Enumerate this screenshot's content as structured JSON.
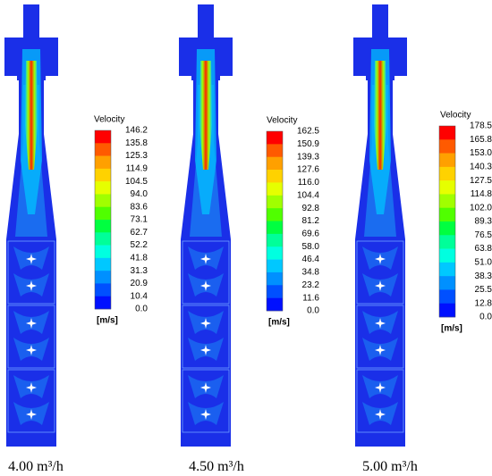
{
  "panels": [
    {
      "caption": "4.00 m³/h",
      "legend": {
        "title": "Velocity",
        "unit": "[m/s]",
        "levels": [
          "146.2",
          "135.8",
          "125.3",
          "114.9",
          "104.5",
          "94.0",
          "83.6",
          "73.1",
          "62.7",
          "52.2",
          "41.8",
          "31.3",
          "20.9",
          "10.4",
          "0.0"
        ]
      }
    },
    {
      "caption": "4.50 m³/h",
      "legend": {
        "title": "Velocity",
        "unit": "[m/s]",
        "levels": [
          "162.5",
          "150.9",
          "139.3",
          "127.6",
          "116.0",
          "104.4",
          "92.8",
          "81.2",
          "69.6",
          "58.0",
          "46.4",
          "34.8",
          "23.2",
          "11.6",
          "0.0"
        ]
      }
    },
    {
      "caption": "5.00 m³/h",
      "legend": {
        "title": "Velocity",
        "unit": "[m/s]",
        "levels": [
          "178.5",
          "165.8",
          "153.0",
          "140.3",
          "127.5",
          "114.8",
          "102.0",
          "89.3",
          "76.5",
          "63.8",
          "51.0",
          "38.3",
          "25.5",
          "12.8",
          "0.0"
        ]
      }
    }
  ]
}
